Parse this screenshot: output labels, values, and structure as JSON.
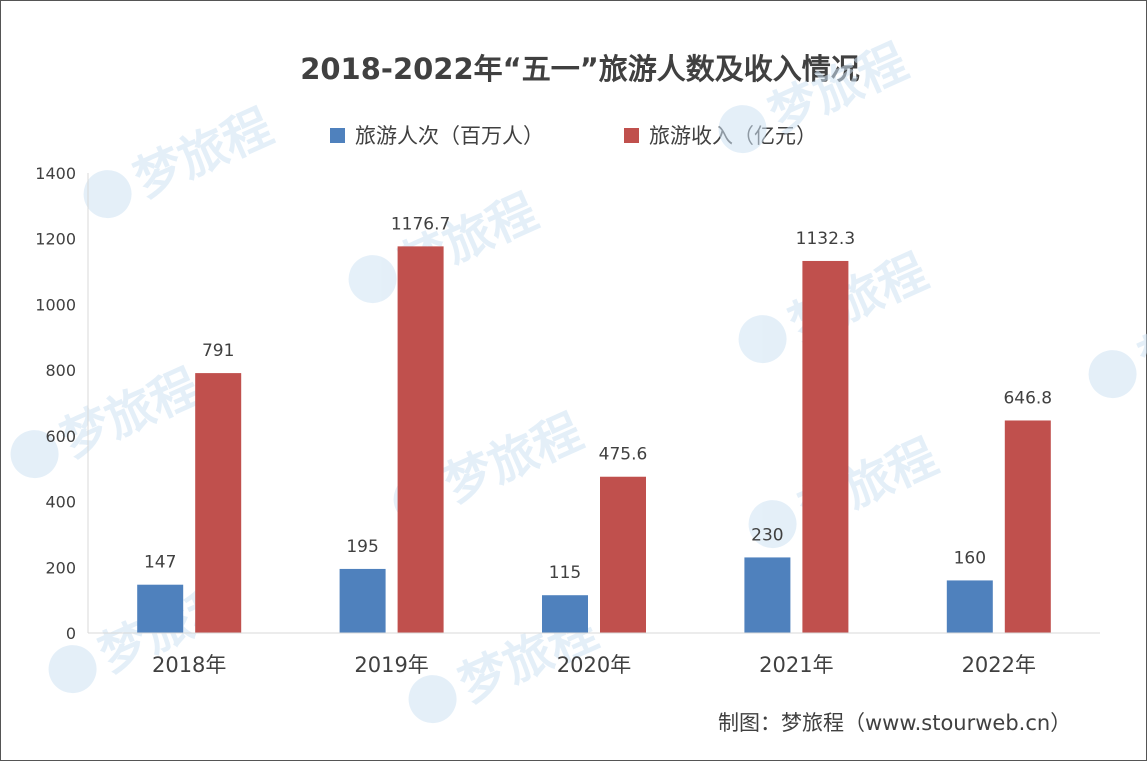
{
  "chart_data": {
    "type": "bar",
    "title": "2018-2022年“五一”旅游人数及收入情况",
    "categories": [
      "2018年",
      "2019年",
      "2020年",
      "2021年",
      "2022年"
    ],
    "series": [
      {
        "name": "旅游人次（百万人）",
        "values": [
          147,
          195,
          115,
          230,
          160
        ],
        "color": "#4f81bd"
      },
      {
        "name": "旅游收入（亿元）",
        "values": [
          791,
          1176.7,
          475.6,
          1132.3,
          646.8
        ],
        "color": "#c0504d"
      }
    ],
    "data_labels": [
      [
        "147",
        "195",
        "115",
        "230",
        "160"
      ],
      [
        "791",
        "1176.7",
        "475.6",
        "1132.3",
        "646.8"
      ]
    ],
    "ylim": [
      0,
      1400
    ],
    "yticks": [
      "0",
      "200",
      "400",
      "600",
      "800",
      "1000",
      "1200",
      "1400"
    ],
    "grid": false,
    "legend_position": "top-center"
  },
  "credit": "制图：梦旅程（www.stourweb.cn）",
  "watermark": "梦旅程"
}
